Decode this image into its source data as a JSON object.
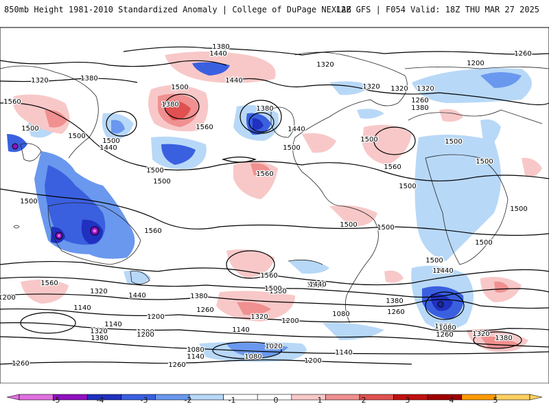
{
  "header": {
    "left_title": "850mb Height 1981-2010 Standardized Anomaly | College of DuPage NEXLAB",
    "right_title": "12Z GFS | F054 Valid: 18Z THU MAR 27 2025"
  },
  "colorbar": {
    "ticks": [
      "-5",
      "-4",
      "-3",
      "-2",
      "-1",
      "0",
      "1",
      "2",
      "3",
      "4",
      "5"
    ],
    "colors": [
      "#e070e0",
      "#9010c0",
      "#2030c0",
      "#3a60e0",
      "#6a98ee",
      "#b8d8f8",
      "#ffffff",
      "#ffffff",
      "#f8c8c8",
      "#f09090",
      "#e05050",
      "#c01010",
      "#a00000",
      "#ff9a00",
      "#ffd060"
    ]
  },
  "contour_labels": [
    {
      "text": "1380"
    },
    {
      "text": "1440"
    },
    {
      "text": "1260"
    },
    {
      "text": "1200"
    },
    {
      "text": "1320"
    },
    {
      "text": "1380"
    },
    {
      "text": "1320"
    },
    {
      "text": "1320"
    },
    {
      "text": "1320"
    },
    {
      "text": "1320"
    },
    {
      "text": "1260"
    },
    {
      "text": "1380"
    },
    {
      "text": "1560"
    },
    {
      "text": "1500"
    },
    {
      "text": "1380"
    },
    {
      "text": "1440"
    },
    {
      "text": "1560"
    },
    {
      "text": "1380"
    },
    {
      "text": "1440"
    },
    {
      "text": "1500"
    },
    {
      "text": "1500"
    },
    {
      "text": "1500"
    },
    {
      "text": "1440"
    },
    {
      "text": "1500"
    },
    {
      "text": "1500"
    },
    {
      "text": "1500"
    },
    {
      "text": "1560"
    },
    {
      "text": "1500"
    },
    {
      "text": "1560"
    },
    {
      "text": "1500"
    },
    {
      "text": "1500"
    },
    {
      "text": "1500"
    },
    {
      "text": "1500"
    },
    {
      "text": "1500"
    },
    {
      "text": "1560"
    },
    {
      "text": "1500"
    },
    {
      "text": "1500"
    },
    {
      "text": "1500"
    },
    {
      "text": "1500"
    },
    {
      "text": "1500"
    },
    {
      "text": "1560"
    },
    {
      "text": "1560"
    },
    {
      "text": "1500"
    },
    {
      "text": "1440"
    },
    {
      "text": "1320"
    },
    {
      "text": "1200"
    },
    {
      "text": "1380"
    },
    {
      "text": "1320"
    },
    {
      "text": "1260"
    },
    {
      "text": "1200"
    },
    {
      "text": "1140"
    },
    {
      "text": "1140"
    },
    {
      "text": "1320"
    },
    {
      "text": "1380"
    },
    {
      "text": "1200"
    },
    {
      "text": "1200"
    },
    {
      "text": "1080"
    },
    {
      "text": "1140"
    },
    {
      "text": "1260"
    },
    {
      "text": "1380"
    },
    {
      "text": "1260"
    },
    {
      "text": "1200"
    },
    {
      "text": "1080"
    },
    {
      "text": "1140"
    },
    {
      "text": "1320"
    },
    {
      "text": "1380"
    },
    {
      "text": "1440"
    },
    {
      "text": "1260"
    },
    {
      "text": "1020"
    },
    {
      "text": "1080"
    },
    {
      "text": "1140"
    },
    {
      "text": "1200"
    },
    {
      "text": "1260"
    },
    {
      "text": "1080"
    },
    {
      "text": "1140"
    },
    {
      "text": "1200"
    },
    {
      "text": "1500"
    },
    {
      "text": "1440"
    },
    {
      "text": "1440"
    },
    {
      "text": "1500"
    }
  ]
}
